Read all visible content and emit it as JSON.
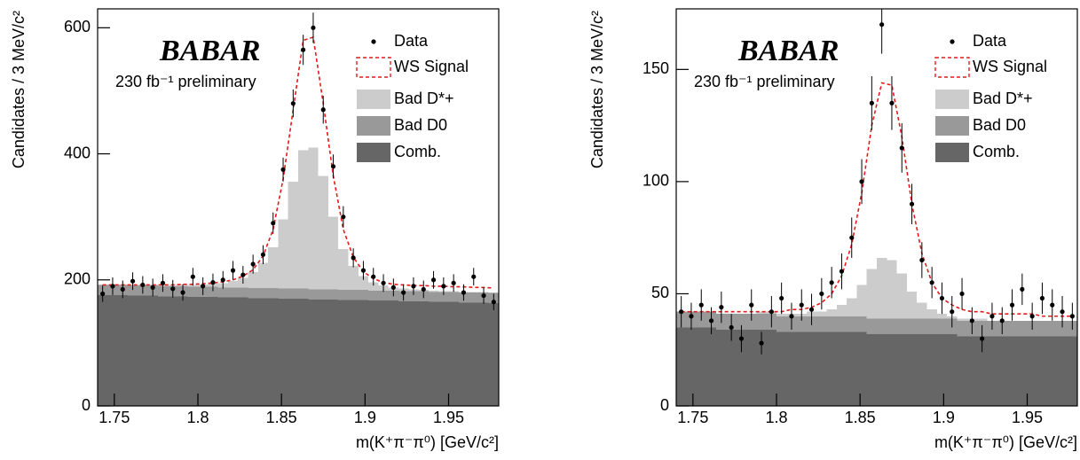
{
  "chart_data": [
    {
      "type": "histogram",
      "ylabel": "Candidates / 3 MeV/c²",
      "xlabel": "m(K⁺π⁻π⁰) [GeV/c²]",
      "logo": "BABAR",
      "note": "230 fb⁻¹ preliminary",
      "legend": "upper right",
      "xlim": [
        1.74,
        1.98
      ],
      "xticks": [
        1.75,
        1.8,
        1.85,
        1.9,
        1.95
      ],
      "ylim": [
        0,
        630
      ],
      "yticks": [
        0,
        200,
        400,
        600
      ],
      "x": [
        1.743,
        1.749,
        1.755,
        1.761,
        1.767,
        1.773,
        1.779,
        1.785,
        1.791,
        1.797,
        1.803,
        1.809,
        1.815,
        1.821,
        1.827,
        1.833,
        1.839,
        1.845,
        1.851,
        1.857,
        1.863,
        1.869,
        1.875,
        1.881,
        1.887,
        1.893,
        1.899,
        1.905,
        1.911,
        1.917,
        1.923,
        1.929,
        1.935,
        1.941,
        1.947,
        1.953,
        1.959,
        1.965,
        1.971,
        1.977
      ],
      "series": [
        {
          "name": "Data",
          "kind": "points",
          "color": "#000000",
          "values": [
            178,
            190,
            185,
            198,
            192,
            188,
            195,
            186,
            180,
            205,
            190,
            196,
            200,
            215,
            208,
            225,
            240,
            290,
            375,
            480,
            565,
            600,
            470,
            380,
            300,
            235,
            215,
            205,
            195,
            188,
            180,
            190,
            185,
            200,
            190,
            195,
            180,
            205,
            175,
            165
          ],
          "errors": [
            13,
            14,
            14,
            14,
            14,
            14,
            14,
            14,
            13,
            14,
            14,
            14,
            14,
            15,
            14,
            15,
            15,
            17,
            19,
            22,
            24,
            24,
            22,
            19,
            17,
            15,
            15,
            14,
            14,
            14,
            13,
            14,
            14,
            14,
            14,
            14,
            13,
            14,
            13,
            13
          ]
        },
        {
          "name": "WS Signal",
          "kind": "line",
          "color": "#e41a1c",
          "values": [
            192,
            192,
            192,
            192,
            192,
            192,
            192,
            192,
            193,
            193,
            194,
            195,
            197,
            200,
            206,
            216,
            238,
            280,
            360,
            470,
            580,
            585,
            480,
            365,
            280,
            236,
            213,
            202,
            196,
            193,
            192,
            191,
            191,
            190,
            190,
            189,
            189,
            188,
            188,
            187
          ]
        },
        {
          "name": "Bad D*+",
          "kind": "step",
          "color": "#cccccc",
          "values": [
            1,
            1,
            1,
            1,
            1,
            2,
            2,
            2,
            3,
            3,
            4,
            5,
            7,
            10,
            15,
            25,
            40,
            65,
            110,
            170,
            220,
            225,
            180,
            115,
            65,
            38,
            22,
            13,
            8,
            5,
            4,
            3,
            2,
            2,
            1,
            1,
            1,
            1,
            1,
            1
          ]
        },
        {
          "name": "Bad D0",
          "kind": "step",
          "color": "#999999",
          "values": [
            16,
            16,
            16,
            16,
            16,
            16,
            16,
            16,
            16,
            16,
            16,
            16,
            16,
            16,
            16,
            16,
            16,
            16,
            16,
            16,
            16,
            16,
            16,
            16,
            16,
            16,
            16,
            16,
            16,
            16,
            16,
            16,
            16,
            16,
            16,
            16,
            16,
            16,
            16,
            16
          ]
        },
        {
          "name": "Comb.",
          "kind": "step",
          "color": "#666666",
          "values": [
            176,
            176,
            176,
            175,
            175,
            175,
            174,
            174,
            174,
            173,
            173,
            173,
            172,
            172,
            172,
            171,
            171,
            171,
            170,
            170,
            170,
            169,
            169,
            169,
            168,
            168,
            168,
            167,
            167,
            167,
            166,
            166,
            166,
            165,
            165,
            165,
            164,
            164,
            164,
            163
          ]
        }
      ]
    },
    {
      "type": "histogram",
      "ylabel": "Candidates / 3 MeV/c²",
      "xlabel": "m(K⁺π⁻π⁰) [GeV/c²]",
      "logo": "BABAR",
      "note": "230 fb⁻¹ preliminary",
      "legend": "upper right",
      "xlim": [
        1.74,
        1.98
      ],
      "xticks": [
        1.75,
        1.8,
        1.85,
        1.9,
        1.95
      ],
      "ylim": [
        0,
        177
      ],
      "yticks": [
        0,
        50,
        100,
        150
      ],
      "x": [
        1.743,
        1.749,
        1.755,
        1.761,
        1.767,
        1.773,
        1.779,
        1.785,
        1.791,
        1.797,
        1.803,
        1.809,
        1.815,
        1.821,
        1.827,
        1.833,
        1.839,
        1.845,
        1.851,
        1.857,
        1.863,
        1.869,
        1.875,
        1.881,
        1.887,
        1.893,
        1.899,
        1.905,
        1.911,
        1.917,
        1.923,
        1.929,
        1.935,
        1.941,
        1.947,
        1.953,
        1.959,
        1.965,
        1.971,
        1.977
      ],
      "series": [
        {
          "name": "Data",
          "kind": "points",
          "color": "#000000",
          "values": [
            42,
            40,
            45,
            38,
            44,
            35,
            30,
            45,
            28,
            42,
            48,
            40,
            45,
            43,
            50,
            55,
            60,
            75,
            100,
            135,
            170,
            135,
            115,
            90,
            65,
            55,
            48,
            42,
            50,
            38,
            30,
            40,
            38,
            45,
            52,
            40,
            48,
            45,
            42,
            40
          ],
          "errors": [
            7,
            6,
            7,
            6,
            7,
            6,
            6,
            7,
            5,
            7,
            7,
            6,
            7,
            7,
            7,
            7,
            8,
            9,
            10,
            12,
            13,
            12,
            11,
            9,
            8,
            7,
            7,
            7,
            7,
            6,
            6,
            6,
            6,
            7,
            7,
            6,
            7,
            7,
            7,
            6
          ]
        },
        {
          "name": "WS Signal",
          "kind": "line",
          "color": "#e41a1c",
          "values": [
            42,
            42,
            42,
            42,
            42,
            42,
            42,
            42,
            42,
            42,
            42,
            43,
            43,
            44,
            46,
            50,
            58,
            72,
            95,
            125,
            144,
            143,
            120,
            90,
            68,
            55,
            48,
            45,
            43,
            42,
            42,
            41,
            41,
            41,
            41,
            41,
            40,
            40,
            40,
            40
          ]
        },
        {
          "name": "Bad D*+",
          "kind": "step",
          "color": "#cccccc",
          "values": [
            0,
            0,
            0,
            0,
            0,
            0,
            0,
            0,
            1,
            1,
            1,
            1,
            1,
            2,
            2,
            3,
            5,
            8,
            14,
            22,
            27,
            26,
            20,
            12,
            7,
            4,
            2,
            1,
            1,
            1,
            1,
            0,
            0,
            0,
            0,
            0,
            0,
            0,
            0,
            0
          ]
        },
        {
          "name": "Bad D0",
          "kind": "step",
          "color": "#999999",
          "values": [
            7,
            7,
            7,
            7,
            7,
            7,
            7,
            7,
            7,
            7,
            7,
            7,
            7,
            7,
            7,
            7,
            7,
            7,
            7,
            7,
            7,
            7,
            7,
            7,
            7,
            7,
            7,
            7,
            7,
            7,
            7,
            7,
            7,
            7,
            7,
            7,
            7,
            7,
            7,
            7
          ]
        },
        {
          "name": "Comb.",
          "kind": "step",
          "color": "#666666",
          "values": [
            35,
            35,
            35,
            35,
            34,
            34,
            34,
            34,
            34,
            34,
            33,
            33,
            33,
            33,
            33,
            33,
            33,
            33,
            33,
            32,
            32,
            32,
            32,
            32,
            32,
            32,
            32,
            32,
            31,
            31,
            31,
            31,
            31,
            31,
            31,
            31,
            31,
            31,
            31,
            31
          ]
        }
      ]
    }
  ]
}
